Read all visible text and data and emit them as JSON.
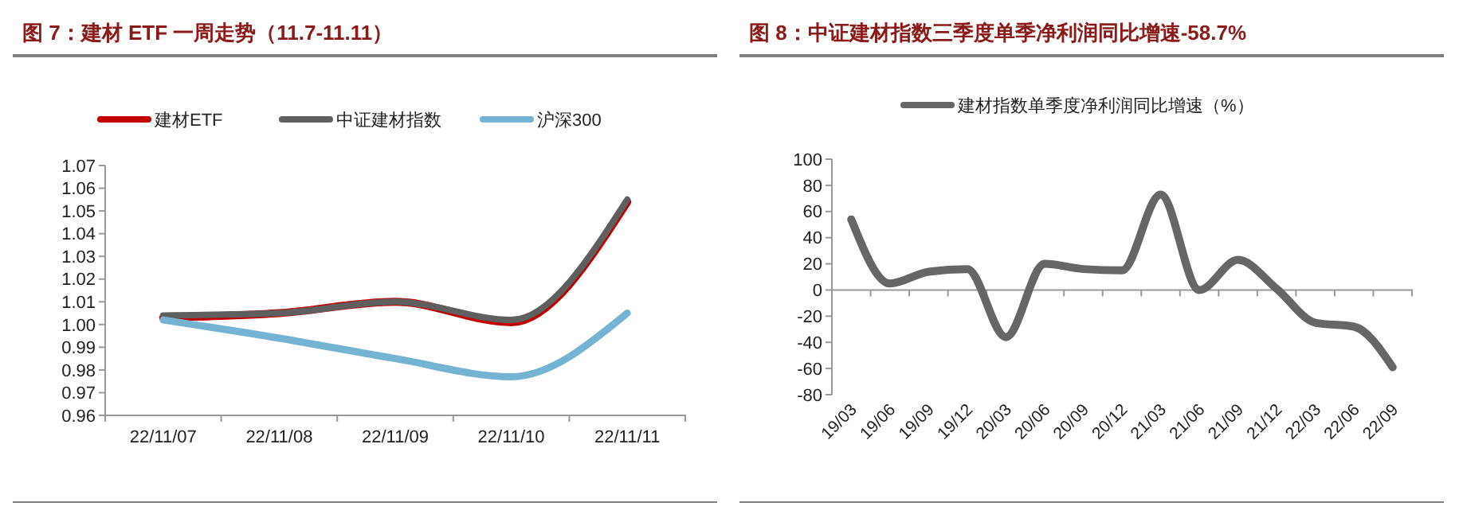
{
  "chart_data": [
    {
      "type": "line",
      "title": "图 7：建材 ETF 一周走势（11.7-11.11）",
      "categories": [
        "22/11/07",
        "22/11/08",
        "22/11/09",
        "22/11/10",
        "22/11/11"
      ],
      "series": [
        {
          "name": "建材ETF",
          "color": "#c00000",
          "values": [
            1.003,
            1.005,
            1.01,
            1.001,
            1.054
          ]
        },
        {
          "name": "中证建材指数",
          "color": "#5f5f5f",
          "values": [
            1.004,
            1.005,
            1.01,
            1.002,
            1.055
          ]
        },
        {
          "name": "沪深300",
          "color": "#74b4d2",
          "values": [
            1.002,
            0.994,
            0.985,
            0.977,
            1.005
          ]
        }
      ],
      "ylim": [
        0.96,
        1.07
      ],
      "yticks": [
        {
          "value": 0.96,
          "label": "0.96"
        },
        {
          "value": 0.97,
          "label": "0.97"
        },
        {
          "value": 0.98,
          "label": "0.98"
        },
        {
          "value": 0.99,
          "label": "0.99"
        },
        {
          "value": 1,
          "label": "1.00"
        },
        {
          "value": 1.01,
          "label": "1.01"
        },
        {
          "value": 1.02,
          "label": "1.02"
        },
        {
          "value": 1.03,
          "label": "1.03"
        },
        {
          "value": 1.04,
          "label": "1.04"
        },
        {
          "value": 1.05,
          "label": "1.05"
        },
        {
          "value": 1.06,
          "label": "1.06"
        },
        {
          "value": 1.07,
          "label": "1.07"
        }
      ],
      "legend": "top",
      "grid": false
    },
    {
      "type": "line",
      "title": "图 8：中证建材指数三季度单季净利润同比增速-58.7%",
      "categories": [
        "19/03",
        "19/06",
        "19/09",
        "19/12",
        "20/03",
        "20/06",
        "20/09",
        "20/12",
        "21/03",
        "21/06",
        "21/09",
        "21/12",
        "22/03",
        "22/06",
        "22/09"
      ],
      "series": [
        {
          "name": "建材指数单季度净利润同比增速（%）",
          "color": "#666666",
          "values": [
            54,
            5,
            14,
            16,
            -36,
            20,
            16,
            15,
            73,
            0,
            23,
            1,
            -25,
            -28,
            -59
          ]
        }
      ],
      "ylim": [
        -80,
        100
      ],
      "yticks": [
        -80,
        -60,
        -40,
        -20,
        0,
        20,
        40,
        60,
        80,
        100
      ],
      "legend": "top",
      "grid": false
    }
  ]
}
